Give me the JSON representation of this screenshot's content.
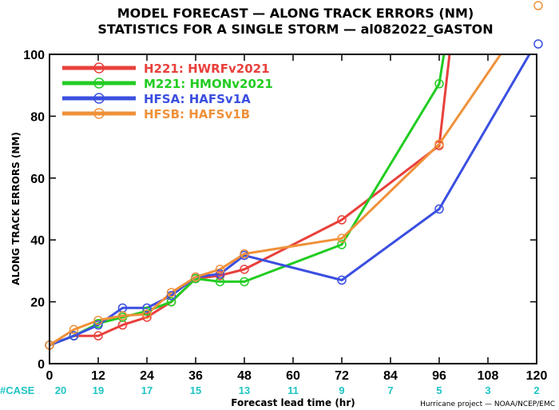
{
  "chart_data": {
    "type": "line",
    "title": "MODEL FORECAST — ALONG TRACK ERRORS (NM)",
    "subtitle": "STATISTICS FOR A SINGLE STORM — al082022_GASTON",
    "xlabel": "Forecast lead time (hr)",
    "ylabel": "ALONG TRACK ERRORS (NM)",
    "xlim": [
      0,
      120
    ],
    "ylim": [
      0,
      100
    ],
    "xticks": [
      "0",
      "12",
      "24",
      "36",
      "48",
      "60",
      "72",
      "84",
      "96",
      "108",
      "120"
    ],
    "yticks": [
      "0",
      "20",
      "40",
      "60",
      "80",
      "100"
    ],
    "grid": false,
    "legend_position": "top-left",
    "case_label": "#CASE",
    "case_counts": [
      "20",
      "19",
      "17",
      "15",
      "13",
      "11",
      "9",
      "7",
      "5",
      "3",
      "2"
    ],
    "credit": "Hurricane project — NOAA/NCEP/EMC",
    "series": [
      {
        "name": "H221: HWRFv2021",
        "color": "#e8403c",
        "x": [
          0,
          6,
          12,
          18,
          24,
          30,
          36,
          42,
          48,
          72,
          96,
          102
        ],
        "y": [
          6,
          9,
          9,
          12.5,
          15,
          20,
          27.5,
          28.5,
          30.5,
          46.5,
          70.5,
          140
        ]
      },
      {
        "name": "M221: HMONv2021",
        "color": "#22cc22",
        "x": [
          0,
          6,
          12,
          18,
          24,
          30,
          36,
          42,
          48,
          72,
          96,
          102
        ],
        "y": [
          6,
          9,
          13,
          15,
          17,
          20,
          27.5,
          26.5,
          26.5,
          38.5,
          90.5,
          140
        ]
      },
      {
        "name": "HFSA: HAFSv1A",
        "color": "#3b4fe0",
        "x": [
          0,
          6,
          12,
          18,
          24,
          30,
          36,
          42,
          48,
          72,
          96,
          120
        ],
        "y": [
          6,
          9,
          12.5,
          18,
          18,
          22,
          28,
          29,
          35,
          27,
          50,
          104
        ]
      },
      {
        "name": "HFSB: HAFSv1B",
        "color": "#f0913a",
        "x": [
          0,
          6,
          12,
          18,
          24,
          30,
          36,
          42,
          48,
          72,
          96,
          120
        ],
        "y": [
          6,
          11,
          14,
          15.5,
          16,
          23,
          28,
          30.5,
          35.5,
          40.5,
          71,
          117
        ]
      }
    ]
  }
}
